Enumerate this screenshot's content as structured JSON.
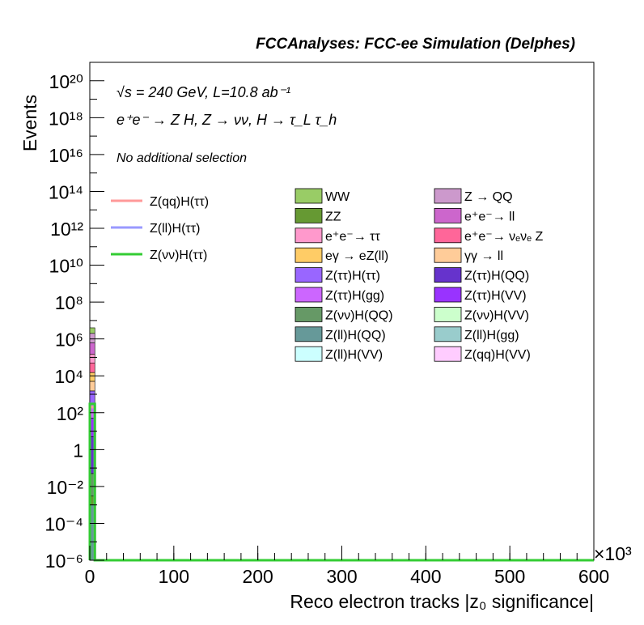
{
  "title": "FCCAnalyses: FCC-ee Simulation (Delphes)",
  "annotations": {
    "line1": "√s = 240 GeV, L=10.8 ab⁻¹",
    "line2": "e⁺e⁻ → Z H, Z → νν, H → τ_L τ_h",
    "line3": "No additional selection"
  },
  "x_exponent_label": "×10³",
  "chart_data": {
    "type": "bar",
    "stacked": true,
    "log_y": true,
    "grid": false,
    "title": "FCCAnalyses: FCC-ee Simulation (Delphes)",
    "xlabel": "Reco electron tracks |z₀ significance|",
    "ylabel": "Events",
    "xlim": [
      0,
      600000
    ],
    "ylim": [
      1e-06,
      1e+21
    ],
    "x_ticks": [
      {
        "value": 0,
        "label": "0"
      },
      {
        "value": 100000,
        "label": "100"
      },
      {
        "value": 200000,
        "label": "200"
      },
      {
        "value": 300000,
        "label": "300"
      },
      {
        "value": 400000,
        "label": "400"
      },
      {
        "value": 500000,
        "label": "500"
      },
      {
        "value": 600000,
        "label": "600"
      }
    ],
    "y_ticks": [
      {
        "exp": -6,
        "label": "10⁻⁶"
      },
      {
        "exp": -4,
        "label": "10⁻⁴"
      },
      {
        "exp": -2,
        "label": "10⁻²"
      },
      {
        "exp": 0,
        "label": "1"
      },
      {
        "exp": 2,
        "label": "10²"
      },
      {
        "exp": 4,
        "label": "10⁴"
      },
      {
        "exp": 6,
        "label": "10⁶"
      },
      {
        "exp": 8,
        "label": "10⁸"
      },
      {
        "exp": 10,
        "label": "10¹⁰"
      },
      {
        "exp": 12,
        "label": "10¹²"
      },
      {
        "exp": 14,
        "label": "10¹⁴"
      },
      {
        "exp": 16,
        "label": "10¹⁶"
      },
      {
        "exp": 18,
        "label": "10¹⁸"
      },
      {
        "exp": 20,
        "label": "10²⁰"
      }
    ],
    "stack_bin": [
      0,
      6000
    ],
    "stack_segments": [
      {
        "name": "WW",
        "top": 4000000,
        "color": "#99cc66"
      },
      {
        "name": "Z → QQ",
        "top": 2000000,
        "color": "#cc99cc"
      },
      {
        "name": "e⁺e⁻→ ll",
        "top": 600000,
        "color": "#cc66cc"
      },
      {
        "name": "e⁺e⁻→ ττ",
        "top": 150000,
        "color": "#ff99cc"
      },
      {
        "name": "e⁺e⁻→ νₑνₑ Z",
        "top": 50000,
        "color": "#ff6699"
      },
      {
        "name": "eγ → eZ(ll)",
        "top": 15000,
        "color": "#ffcc66"
      },
      {
        "name": "γγ → ll",
        "top": 5000,
        "color": "#ffcc99"
      },
      {
        "name": "Z(ττ)H(ττ)",
        "top": 1500,
        "color": "#9966ff"
      },
      {
        "name": "Z(ττ)H(gg)",
        "top": 300,
        "color": "#cc66ff"
      },
      {
        "name": "Z(ττ)H(VV)",
        "top": 50,
        "color": "#9933ff"
      },
      {
        "name": "Z(ττ)H(QQ)",
        "top": 5,
        "color": "#6633cc"
      },
      {
        "name": "Z(νν)H(QQ)",
        "top": 0.05,
        "color": "#669966"
      },
      {
        "name": "ZZ",
        "top": 0.003,
        "color": "#669933"
      },
      {
        "name": "Z(ll)H(QQ)",
        "top": 0.001,
        "color": "#669999"
      }
    ],
    "signal_lines": [
      {
        "name": "Z(qq)H(ττ)",
        "color": "#ff9999",
        "points": [
          [
            0,
            1e-06
          ],
          [
            0,
            200
          ],
          [
            6000,
            200
          ],
          [
            6000,
            1e-06
          ],
          [
            600000,
            1e-06
          ]
        ]
      },
      {
        "name": "Z(ll)H(ττ)",
        "color": "#9999ff",
        "points": [
          [
            0,
            1e-06
          ],
          [
            0,
            300
          ],
          [
            6000,
            300
          ],
          [
            6000,
            1e-06
          ],
          [
            600000,
            1e-06
          ]
        ]
      },
      {
        "name": "Z(νν)H(ττ)",
        "color": "#33cc33",
        "points": [
          [
            0,
            1e-06
          ],
          [
            0,
            300
          ],
          [
            6000,
            300
          ],
          [
            6000,
            1e-06
          ],
          [
            600000,
            1e-06
          ]
        ]
      }
    ],
    "legend_signals": [
      {
        "label": "Z(qq)H(ττ)",
        "color": "#ff9999"
      },
      {
        "label": "Z(ll)H(ττ)",
        "color": "#9999ff"
      },
      {
        "label": "Z(νν)H(ττ)",
        "color": "#33cc33"
      }
    ],
    "legend_backgrounds": [
      {
        "label": "WW",
        "color": "#99cc66"
      },
      {
        "label": "Z → QQ",
        "color": "#cc99cc"
      },
      {
        "label": "ZZ",
        "color": "#669933"
      },
      {
        "label": "e⁺e⁻→ ll",
        "color": "#cc66cc"
      },
      {
        "label": "e⁺e⁻→ ττ",
        "color": "#ff99cc"
      },
      {
        "label": "e⁺e⁻→ νₑνₑ Z",
        "color": "#ff6699"
      },
      {
        "label": "eγ → eZ(ll)",
        "color": "#ffcc66"
      },
      {
        "label": "γγ → ll",
        "color": "#ffcc99"
      },
      {
        "label": "Z(ττ)H(ττ)",
        "color": "#9966ff"
      },
      {
        "label": "Z(ττ)H(QQ)",
        "color": "#6633cc"
      },
      {
        "label": "Z(ττ)H(gg)",
        "color": "#cc66ff"
      },
      {
        "label": "Z(ττ)H(VV)",
        "color": "#9933ff"
      },
      {
        "label": "Z(νν)H(QQ)",
        "color": "#669966"
      },
      {
        "label": "Z(νν)H(VV)",
        "color": "#ccffcc"
      },
      {
        "label": "Z(ll)H(QQ)",
        "color": "#669999"
      },
      {
        "label": "Z(ll)H(gg)",
        "color": "#99cccc"
      },
      {
        "label": "Z(ll)H(VV)",
        "color": "#ccffff"
      },
      {
        "label": "Z(qq)H(VV)",
        "color": "#ffccff"
      }
    ]
  }
}
